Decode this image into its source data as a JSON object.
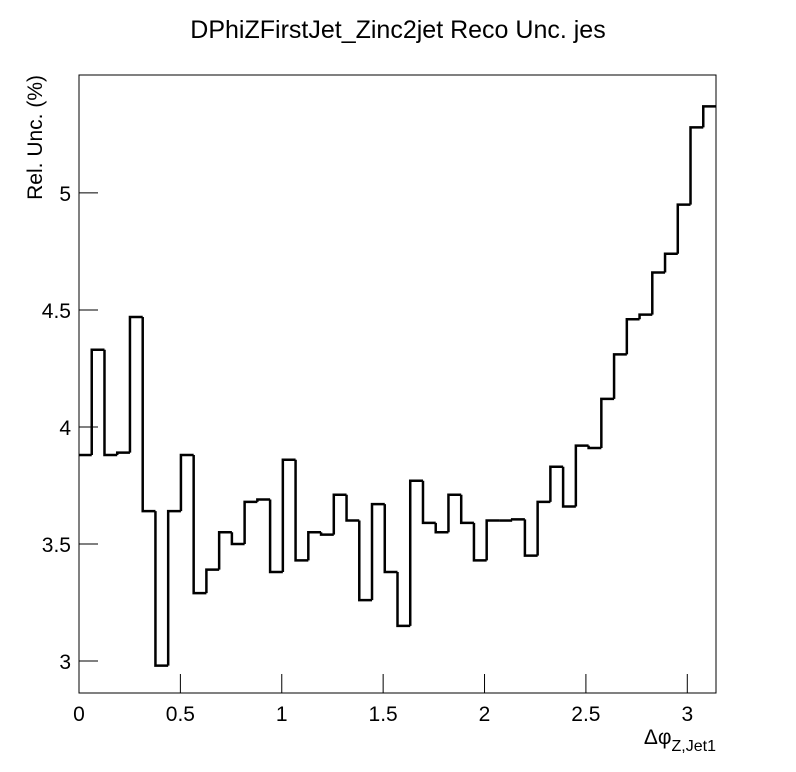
{
  "chart_data": {
    "type": "histogram",
    "title": "DPhiZFirstJet_Zinc2jet Reco Unc. jes",
    "y_label": "Rel. Unc. (%)",
    "x_label": "Δφ",
    "x_label_sub": "Z,Jet1",
    "color": "#000000",
    "bins": [
      0,
      0.0628,
      0.1257,
      0.1885,
      0.2513,
      0.3142,
      0.377,
      0.4398,
      0.5027,
      0.5655,
      0.6283,
      0.6912,
      0.754,
      0.8168,
      0.8796,
      0.9425,
      1.0053,
      1.0681,
      1.131,
      1.1938,
      1.2566,
      1.3195,
      1.3823,
      1.4451,
      1.508,
      1.5708,
      1.6336,
      1.6965,
      1.7593,
      1.8221,
      1.885,
      1.9478,
      2.0106,
      2.0735,
      2.1363,
      2.1991,
      2.2619,
      2.3248,
      2.3876,
      2.4504,
      2.5133,
      2.5761,
      2.6389,
      2.7018,
      2.7646,
      2.8274,
      2.8903,
      2.9531,
      3.0159,
      3.0788,
      3.1416
    ],
    "values": [
      3.88,
      4.33,
      3.88,
      3.89,
      4.47,
      3.64,
      2.98,
      3.64,
      3.88,
      3.29,
      3.39,
      3.55,
      3.5,
      3.68,
      3.69,
      3.38,
      3.86,
      3.43,
      3.55,
      3.54,
      3.71,
      3.6,
      3.26,
      3.67,
      3.38,
      3.15,
      3.77,
      3.59,
      3.55,
      3.71,
      3.59,
      3.43,
      3.6,
      3.6,
      3.605,
      3.45,
      3.68,
      3.83,
      3.66,
      3.92,
      3.91,
      4.12,
      4.31,
      4.46,
      4.48,
      4.66,
      4.74,
      4.95,
      5.28,
      5.37
    ],
    "xlim": [
      0,
      3.1416
    ],
    "ylim": [
      2.863,
      5.504
    ],
    "xticks": [
      0,
      0.5,
      1,
      1.5,
      2,
      2.5,
      3
    ],
    "yticks": [
      3,
      3.5,
      4,
      4.5,
      5
    ]
  }
}
